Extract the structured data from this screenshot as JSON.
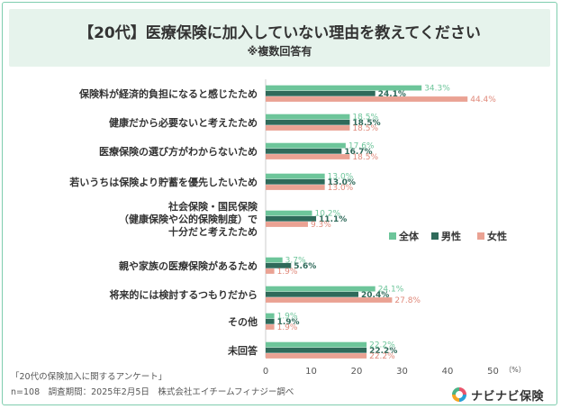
{
  "header": {
    "title": "【20代】医療保険に加入していない理由を教えてください",
    "subtitle": "※複数回答有"
  },
  "footer": {
    "source": "「20代の保険加入に関するアンケート」",
    "info": "n=108　調査期間：2025年2月5日　株式会社エイチームフィナジー調べ"
  },
  "logo": {
    "text": "ナビナビ保険",
    "colors": [
      "#e9546b",
      "#2a9fd6",
      "#f5a623",
      "#4cb386"
    ]
  },
  "colors": {
    "all": "#6dc59a",
    "male": "#2f6a5a",
    "female": "#eaa293"
  },
  "chart_data": {
    "type": "bar",
    "orientation": "horizontal",
    "categories": [
      [
        "保険料が経済的負担になると感じたため"
      ],
      [
        "健康だから必要ないと考えたため"
      ],
      [
        "医療保険の選び方がわからないため"
      ],
      [
        "若いうちは保険より貯蓄を優先したいため"
      ],
      [
        "社会保険・国民保険",
        "（健康保険や公的保険制度）で",
        "十分だと考えたため"
      ],
      [
        "親や家族の医療保険があるため"
      ],
      [
        "将来的には検討するつもりだから"
      ],
      [
        "その他"
      ],
      [
        "未回答"
      ]
    ],
    "series": [
      {
        "name": "全体",
        "values": [
          34.3,
          18.5,
          17.6,
          13.0,
          10.2,
          3.7,
          24.1,
          1.9,
          22.2
        ]
      },
      {
        "name": "男性",
        "values": [
          24.1,
          18.5,
          16.7,
          13.0,
          11.1,
          5.6,
          20.4,
          1.9,
          22.2
        ]
      },
      {
        "name": "女性",
        "values": [
          44.4,
          18.5,
          18.5,
          13.0,
          9.3,
          1.9,
          27.8,
          1.9,
          22.2
        ]
      }
    ],
    "xlim": [
      0,
      50
    ],
    "xticks": [
      0,
      10,
      20,
      30,
      40,
      50
    ],
    "xunit": "（%）",
    "legend": "right",
    "grid": false
  }
}
